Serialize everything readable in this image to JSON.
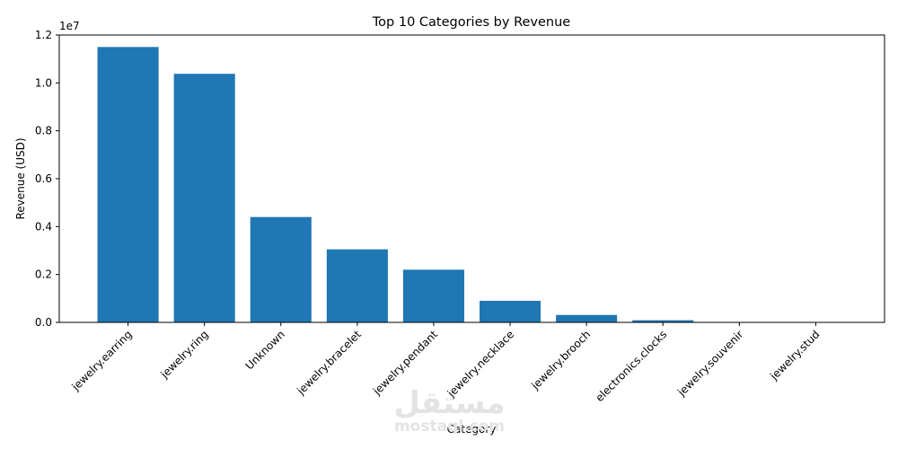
{
  "chart_data": {
    "type": "bar",
    "title": "Top 10 Categories by Revenue",
    "xlabel": "Category",
    "ylabel": "Revenue (USD)",
    "y_exponent_label": "1e7",
    "ylim": [
      0,
      12000000
    ],
    "yticks": [
      0,
      2000000,
      4000000,
      6000000,
      8000000,
      10000000,
      12000000
    ],
    "ytick_labels": [
      "0.0",
      "0.2",
      "0.4",
      "0.6",
      "0.8",
      "1.0",
      "1.2"
    ],
    "categories": [
      "jewelry.earring",
      "jewelry.ring",
      "Unknown",
      "jewelry.bracelet",
      "jewelry.pendant",
      "jewelry.necklace",
      "jewelry.brooch",
      "electronics.clocks",
      "jewelry.souvenir",
      "jewelry.stud"
    ],
    "values": [
      11500000,
      10380000,
      4400000,
      3050000,
      2200000,
      900000,
      310000,
      90000,
      8000,
      4000
    ],
    "bar_color": "#1f77b4",
    "grid": false
  },
  "watermark": {
    "logo_text": "مستقل",
    "sub_text": "mostaql.com"
  }
}
